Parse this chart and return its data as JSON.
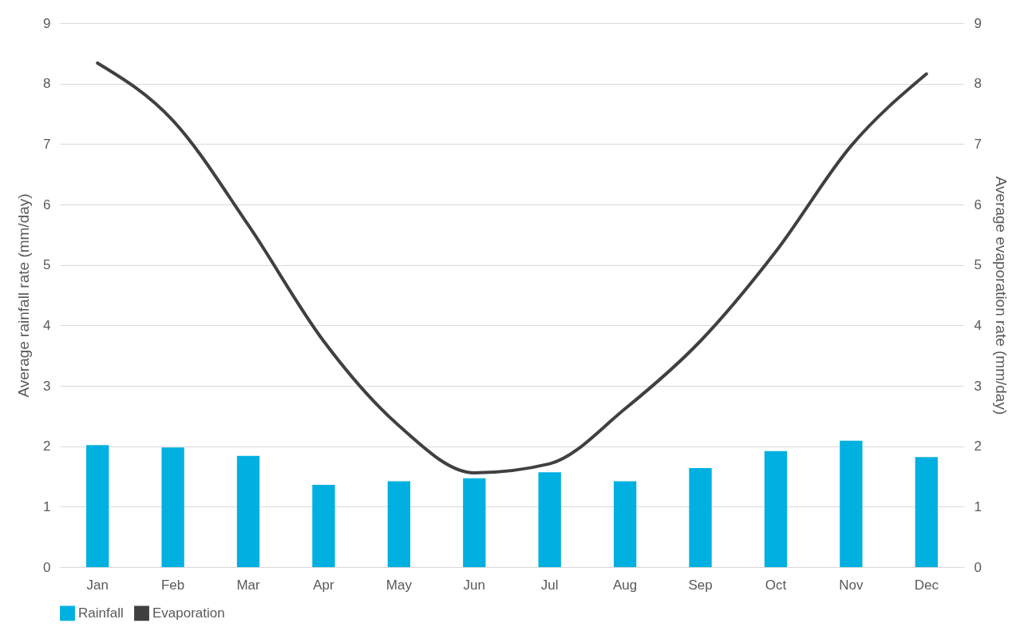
{
  "chart_data": {
    "type": "bar",
    "categories": [
      "Jan",
      "Feb",
      "Mar",
      "Apr",
      "May",
      "Jun",
      "Jul",
      "Aug",
      "Sep",
      "Oct",
      "Nov",
      "Dec"
    ],
    "ylabel": "Average rainfall rate (mm/day)",
    "y2label": "Average evaporation rate (mm/day)",
    "series": [
      {
        "name": "Rainfall",
        "color": "#00b0e0",
        "values": [
          2.02,
          1.98,
          1.84,
          1.36,
          1.42,
          1.47,
          1.57,
          1.42,
          1.64,
          1.92,
          2.09,
          1.82
        ]
      },
      {
        "name": "Evaporation",
        "type": "line",
        "axis": "y2",
        "color": "#404040",
        "values": [
          8.34,
          7.39,
          5.66,
          3.74,
          2.34,
          1.56,
          1.71,
          2.62,
          3.74,
          5.22,
          6.97,
          8.16
        ]
      }
    ],
    "ylim": [
      0,
      9
    ],
    "yticks": [
      0,
      1,
      2,
      3,
      4,
      5,
      6,
      7,
      8,
      9
    ],
    "y2lim": [
      0,
      9
    ],
    "y2ticks": [
      0,
      1,
      2,
      3,
      4,
      5,
      6,
      7,
      8,
      9
    ],
    "grid": "y",
    "legend": "bottom",
    "marker": "none",
    "line_style": "solid"
  }
}
